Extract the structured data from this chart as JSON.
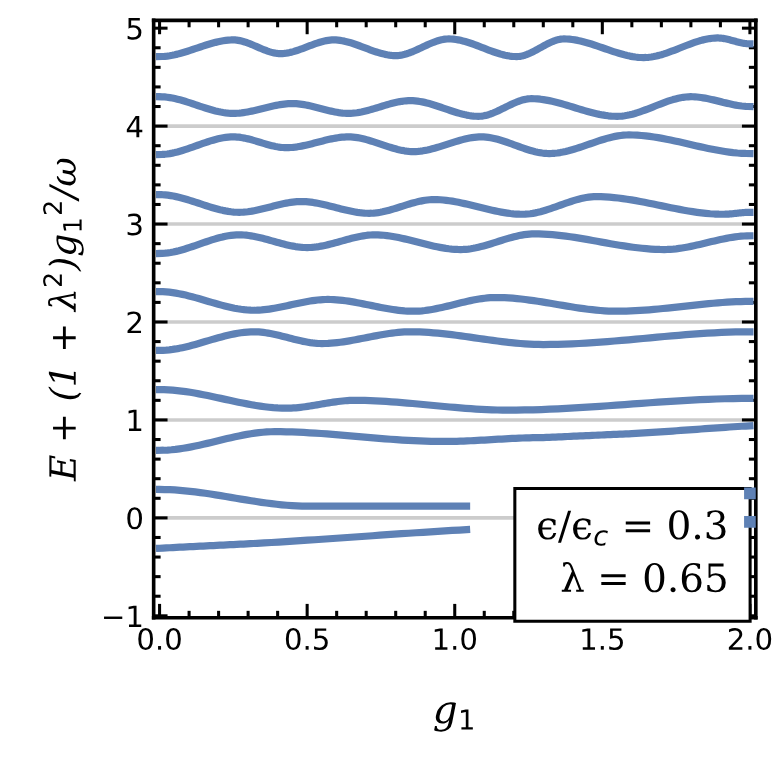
{
  "chart_data": {
    "type": "line",
    "xlabel": "g$_{1}$",
    "ylabel": "E + (1 + λ$^{2}$)g$_{1}$$^{2}$/ω",
    "xlim": [
      -0.02,
      2.02
    ],
    "ylim": [
      -1.02,
      5.08
    ],
    "xticks": [
      {
        "value": 0,
        "label": "0.0"
      },
      0.5,
      {
        "value": 1,
        "label": "1.0"
      },
      1.5,
      {
        "value": 2,
        "label": "2.0"
      }
    ],
    "yticks": [
      {
        "value": -1,
        "label": "−1"
      },
      0,
      1,
      2,
      3,
      4,
      5
    ],
    "grid": false,
    "legend": false,
    "marker": "none",
    "line_style": "solid",
    "ref_lines": [
      {
        "axis": "y",
        "value": 0,
        "color": "#cccccc"
      },
      {
        "axis": "y",
        "value": 1,
        "color": "#cccccc"
      },
      {
        "axis": "y",
        "value": 2,
        "color": "#cccccc"
      },
      {
        "axis": "y",
        "value": 3,
        "color": "#cccccc"
      },
      {
        "axis": "y",
        "value": 4,
        "color": "#cccccc"
      }
    ],
    "annotations": [
      "ϵ/ϵ$_{c}$ = 0.3",
      "λ = 0.65"
    ],
    "series": [
      {
        "color": "#5e81b5",
        "x": [
          0,
          0.25,
          0.41,
          0.59,
          0.8,
          0.98,
          1.21,
          1.37,
          1.64,
          1.89,
          2.0
        ],
        "values": [
          4.71,
          4.88,
          4.74,
          4.88,
          4.72,
          4.89,
          4.71,
          4.89,
          4.7,
          4.9,
          4.84
        ]
      },
      {
        "color": "#5e81b5",
        "x": [
          0,
          0.25,
          0.45,
          0.64,
          0.85,
          1.08,
          1.26,
          1.55,
          1.8,
          2.0
        ],
        "values": [
          4.3,
          4.13,
          4.23,
          4.13,
          4.26,
          4.1,
          4.28,
          4.1,
          4.3,
          4.2
        ]
      },
      {
        "color": "#5e81b5",
        "x": [
          0,
          0.25,
          0.43,
          0.64,
          0.86,
          1.09,
          1.32,
          1.59,
          2.0
        ],
        "values": [
          3.71,
          3.89,
          3.78,
          3.89,
          3.74,
          3.89,
          3.72,
          3.91,
          3.72
        ]
      },
      {
        "color": "#5e81b5",
        "x": [
          0,
          0.27,
          0.48,
          0.71,
          0.93,
          1.23,
          1.48,
          1.91,
          2.0
        ],
        "values": [
          3.3,
          3.12,
          3.23,
          3.11,
          3.25,
          3.1,
          3.28,
          3.1,
          3.12
        ]
      },
      {
        "color": "#5e81b5",
        "x": [
          0,
          0.27,
          0.5,
          0.73,
          1.02,
          1.27,
          1.71,
          2.0
        ],
        "values": [
          2.7,
          2.89,
          2.76,
          2.89,
          2.74,
          2.9,
          2.74,
          2.88
        ]
      },
      {
        "color": "#5e81b5",
        "x": [
          0,
          0.32,
          0.57,
          0.86,
          1.14,
          1.55,
          2.0
        ],
        "values": [
          2.31,
          2.12,
          2.23,
          2.11,
          2.25,
          2.11,
          2.21
        ]
      },
      {
        "color": "#5e81b5",
        "x": [
          0,
          0.32,
          0.55,
          0.85,
          1.3,
          2.0
        ],
        "values": [
          1.71,
          1.9,
          1.78,
          1.9,
          1.77,
          1.9
        ]
      },
      {
        "color": "#5e81b5",
        "x": [
          0,
          0.43,
          0.66,
          1.18,
          2.0
        ],
        "values": [
          1.31,
          1.12,
          1.2,
          1.1,
          1.22
        ]
      },
      {
        "color": "#5e81b5",
        "x": [
          0,
          0.39,
          0.96,
          1.3,
          1.6,
          2.0
        ],
        "values": [
          0.69,
          0.88,
          0.78,
          0.82,
          0.86,
          0.94
        ]
      },
      {
        "color": "#5e81b5",
        "x": [
          0,
          0.5,
          1.04,
          1.5,
          2.0
        ],
        "values": [
          0.29,
          0.12,
          0.12,
          null,
          0.25
        ]
      },
      {
        "color": "#5e81b5",
        "x": [
          0,
          0.33,
          1.04,
          1.5,
          2.0
        ],
        "values": [
          -0.31,
          -0.26,
          -0.12,
          null,
          -0.04
        ]
      }
    ]
  }
}
